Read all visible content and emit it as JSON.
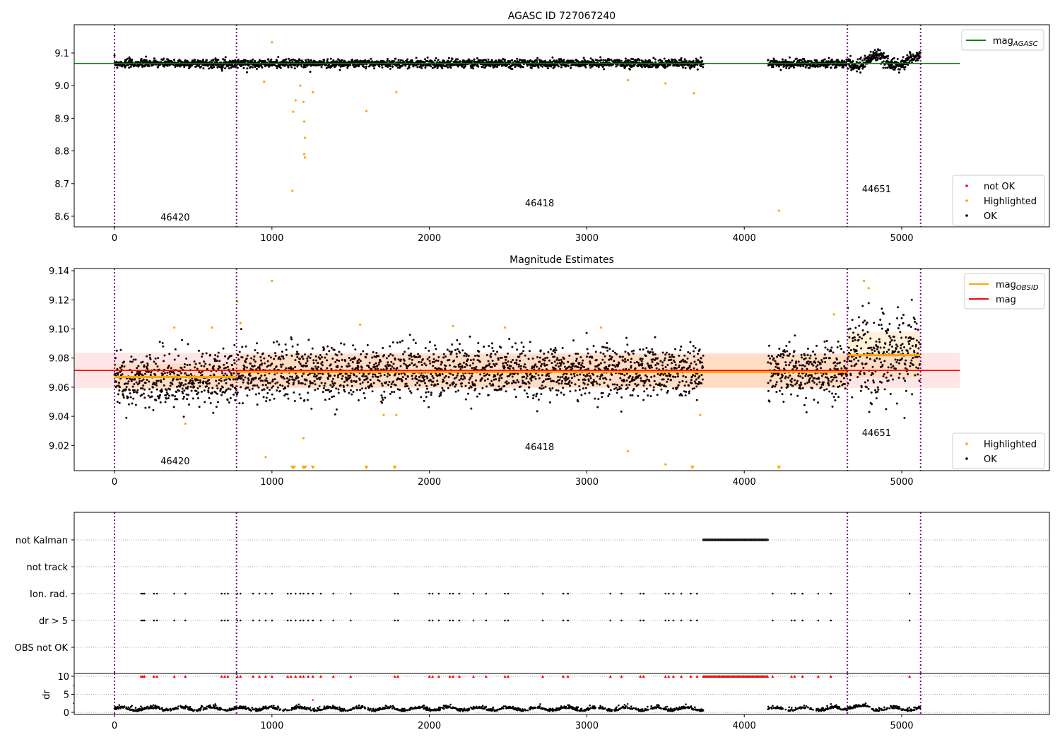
{
  "chart_data": [
    {
      "type": "scatter",
      "title": "AGASC ID 727067240",
      "xlim": [
        -256,
        5938
      ],
      "ylim": [
        8.5675,
        9.1866
      ],
      "xticks": [
        0,
        1000,
        2000,
        3000,
        4000,
        5000
      ],
      "yticks": [
        8.6,
        8.7,
        8.8,
        8.9,
        9.0,
        9.1
      ],
      "mag_agasc": 9.068,
      "legend_line": {
        "label": "mag",
        "sub": "AGASC",
        "color": "#008000"
      },
      "legend_points": [
        {
          "label": "not OK",
          "color": "#ff0000"
        },
        {
          "label": "Highlighted",
          "color": "#ffa500"
        },
        {
          "label": "OK",
          "color": "#000000"
        }
      ],
      "highlighted": [
        [
          1000,
          9.133
        ],
        [
          1130,
          8.678
        ],
        [
          1135,
          8.92
        ],
        [
          1150,
          8.955
        ],
        [
          1200,
          8.95
        ],
        [
          1205,
          8.89
        ],
        [
          1210,
          8.84
        ],
        [
          1205,
          8.79
        ],
        [
          1210,
          8.78
        ],
        [
          1600,
          8.922
        ],
        [
          1790,
          8.98
        ],
        [
          3260,
          9.017
        ],
        [
          3500,
          9.007
        ],
        [
          3680,
          8.977
        ],
        [
          4220,
          8.617
        ],
        [
          950,
          9.012
        ],
        [
          1260,
          8.98
        ],
        [
          1180,
          9.0
        ]
      ]
    },
    {
      "type": "scatter",
      "title": "Magnitude Estimates",
      "xlim": [
        -256,
        5938
      ],
      "ylim": [
        9.0027,
        9.1415
      ],
      "xticks": [
        0,
        1000,
        2000,
        3000,
        4000,
        5000
      ],
      "yticks": [
        9.02,
        9.04,
        9.06,
        9.08,
        9.1,
        9.12,
        9.14
      ],
      "mag": 9.0715,
      "mag_band": [
        9.0595,
        9.0835
      ],
      "mag_obsid": [
        {
          "obsid": "46420",
          "x": [
            0,
            775
          ],
          "mag": 9.067,
          "band": [
            9.059,
            9.076
          ]
        },
        {
          "obsid": "46418",
          "x": [
            775,
            4655
          ],
          "mag": 9.0705,
          "band": [
            9.06,
            9.0825
          ]
        },
        {
          "obsid": "44651",
          "x": [
            4655,
            5120
          ],
          "mag": 9.082,
          "band": [
            9.067,
            9.098
          ]
        }
      ],
      "legend_lines": [
        {
          "label": "mag",
          "sub": "OBSID",
          "color": "#ffa500"
        },
        {
          "label": "mag",
          "sub": "",
          "color": "#ff0000"
        }
      ],
      "legend_points": [
        {
          "label": "Highlighted",
          "color": "#ffa500"
        },
        {
          "label": "OK",
          "color": "#000000"
        }
      ],
      "highlighted": [
        [
          1000,
          9.133
        ],
        [
          780,
          9.119
        ],
        [
          800,
          9.104
        ],
        [
          1560,
          9.103
        ],
        [
          2150,
          9.102
        ],
        [
          2480,
          9.101
        ],
        [
          3090,
          9.101
        ],
        [
          4570,
          9.11
        ],
        [
          380,
          9.101
        ],
        [
          620,
          9.101
        ],
        [
          4760,
          9.133
        ],
        [
          4790,
          9.128
        ],
        [
          450,
          9.035
        ],
        [
          1710,
          9.041
        ],
        [
          1790,
          9.041
        ],
        [
          3720,
          9.041
        ],
        [
          1200,
          9.025
        ],
        [
          3260,
          9.016
        ],
        [
          3500,
          9.007
        ],
        [
          960,
          9.012
        ]
      ]
    },
    {
      "type": "scatter",
      "ylabels": [
        "not Kalman",
        "not track",
        "Ion. rad.",
        "dr > 5",
        "OBS not OK"
      ],
      "not_kalman_range": [
        3740,
        4150
      ],
      "ion_rad_x": [
        170,
        180,
        190,
        250,
        270,
        380,
        450,
        680,
        700,
        720,
        780,
        800,
        880,
        920,
        960,
        1000,
        1100,
        1120,
        1150,
        1180,
        1200,
        1230,
        1260,
        1310,
        1390,
        1500,
        1780,
        1800,
        2000,
        2020,
        2060,
        2130,
        2150,
        2190,
        2280,
        2360,
        2480,
        2500,
        2720,
        2850,
        2880,
        3150,
        3220,
        3340,
        3360,
        3500,
        3520,
        3550,
        3600,
        3660,
        3700,
        4180,
        4300,
        4320,
        4370,
        4470,
        4550,
        5050
      ]
    },
    {
      "type": "scatter",
      "ylabel": "dr",
      "ylim": [
        -0.59,
        10.78
      ],
      "yticks": [
        0,
        5,
        10
      ]
    }
  ],
  "obsid_labels": [
    {
      "text": "46420",
      "x": 385
    },
    {
      "text": "46418",
      "x": 2700
    },
    {
      "text": "44651",
      "x": 4840
    }
  ],
  "obsid_boundaries": [
    0,
    775,
    4655,
    5120
  ],
  "data_gap": [
    3740,
    4150
  ]
}
